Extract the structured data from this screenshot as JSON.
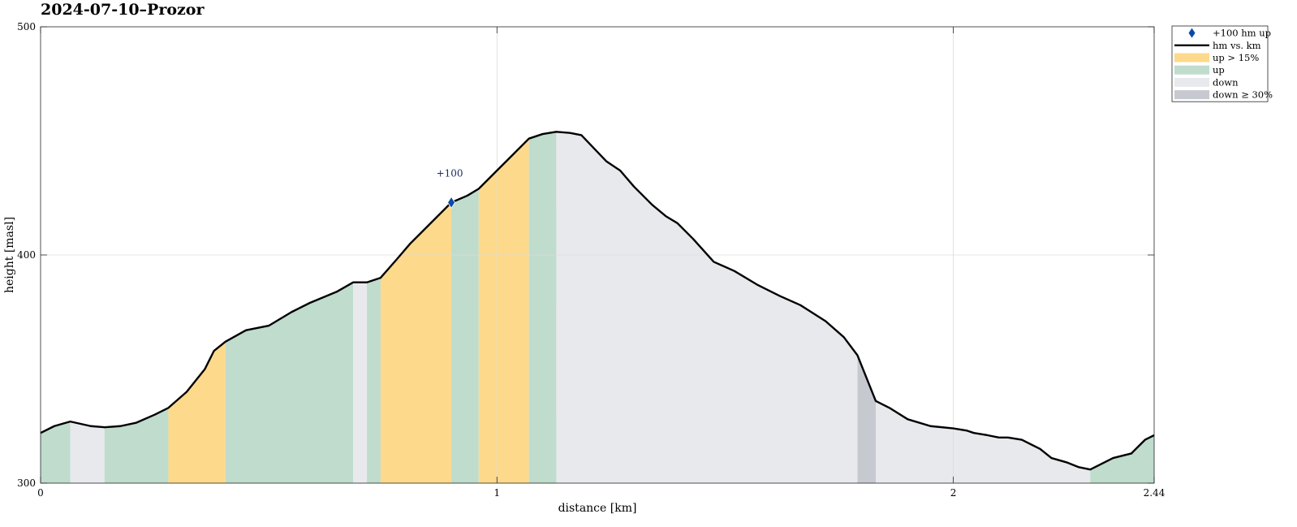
{
  "chart_data": {
    "type": "area",
    "title": "2024-07-10–Prozor",
    "xlabel": "distance [km]",
    "ylabel": "height [masl]",
    "xlim": [
      0,
      2.44
    ],
    "ylim": [
      300,
      500
    ],
    "x_ticks": [
      {
        "value": 0,
        "label": "0"
      },
      {
        "value": 1,
        "label": "1"
      },
      {
        "value": 2,
        "label": "2"
      },
      {
        "value": 2.44,
        "label": "2.44"
      }
    ],
    "y_ticks": [
      {
        "value": 300,
        "label": "300"
      },
      {
        "value": 400,
        "label": "400"
      },
      {
        "value": 500,
        "label": "500"
      }
    ],
    "grid": true,
    "legend_position": "outside-top-right",
    "legend": [
      {
        "key": "marker",
        "label": "+100 hm up",
        "color": "#0a4aa8"
      },
      {
        "key": "line",
        "label": "hm vs. km",
        "color": "#000000"
      },
      {
        "key": "steep_up",
        "label": "up > 15%",
        "color": "#fdd98c"
      },
      {
        "key": "up",
        "label": "up",
        "color": "#bfdccd"
      },
      {
        "key": "down",
        "label": "down",
        "color": "#e8e9ec"
      },
      {
        "key": "steep_down",
        "label": "down ≥ 30%",
        "color": "#c6c9d0"
      }
    ],
    "series": [
      {
        "name": "hm vs. km",
        "x": [
          0,
          0.03,
          0.065,
          0.11,
          0.14,
          0.175,
          0.21,
          0.25,
          0.28,
          0.32,
          0.36,
          0.38,
          0.405,
          0.45,
          0.5,
          0.55,
          0.59,
          0.65,
          0.685,
          0.715,
          0.745,
          0.78,
          0.81,
          0.85,
          0.9,
          0.935,
          0.96,
          1.0,
          1.035,
          1.07,
          1.1,
          1.13,
          1.16,
          1.185,
          1.24,
          1.27,
          1.3,
          1.34,
          1.37,
          1.395,
          1.43,
          1.475,
          1.52,
          1.57,
          1.62,
          1.665,
          1.72,
          1.76,
          1.79,
          1.83,
          1.86,
          1.9,
          1.95,
          2.0,
          2.03,
          2.045,
          2.075,
          2.1,
          2.12,
          2.15,
          2.19,
          2.215,
          2.25,
          2.275,
          2.3,
          2.32,
          2.35,
          2.39,
          2.42,
          2.44
        ],
        "y": [
          322,
          325,
          327,
          325,
          324.5,
          325,
          326.5,
          330,
          333,
          340,
          350,
          358,
          362,
          367,
          369,
          375,
          379,
          384,
          388,
          388,
          390,
          398,
          405,
          413,
          423,
          426,
          429,
          437,
          444,
          451,
          453,
          454,
          453.5,
          452.5,
          441,
          437,
          430,
          422,
          417,
          414,
          407,
          397,
          393,
          387,
          382,
          378,
          371,
          364,
          356,
          336,
          333,
          328,
          325,
          324,
          323,
          322,
          321,
          320,
          320,
          319,
          315,
          311,
          309,
          307,
          306,
          308,
          311,
          313,
          319,
          321
        ]
      }
    ],
    "segments": [
      {
        "type": "up",
        "x0": 0,
        "x1": 0.065
      },
      {
        "type": "down",
        "x0": 0.065,
        "x1": 0.14
      },
      {
        "type": "up",
        "x0": 0.14,
        "x1": 0.28
      },
      {
        "type": "steep_up",
        "x0": 0.28,
        "x1": 0.405
      },
      {
        "type": "up",
        "x0": 0.405,
        "x1": 0.685
      },
      {
        "type": "down",
        "x0": 0.685,
        "x1": 0.715
      },
      {
        "type": "up",
        "x0": 0.715,
        "x1": 0.745
      },
      {
        "type": "steep_up",
        "x0": 0.745,
        "x1": 0.9
      },
      {
        "type": "up",
        "x0": 0.9,
        "x1": 0.96
      },
      {
        "type": "steep_up",
        "x0": 0.96,
        "x1": 1.07
      },
      {
        "type": "up",
        "x0": 1.07,
        "x1": 1.13
      },
      {
        "type": "down",
        "x0": 1.13,
        "x1": 1.79
      },
      {
        "type": "steep_down",
        "x0": 1.79,
        "x1": 1.83
      },
      {
        "type": "down",
        "x0": 1.83,
        "x1": 2.3
      },
      {
        "type": "up",
        "x0": 2.3,
        "x1": 2.44
      }
    ],
    "markers": [
      {
        "x": 0.9,
        "y": 423,
        "label": "+100"
      }
    ]
  }
}
